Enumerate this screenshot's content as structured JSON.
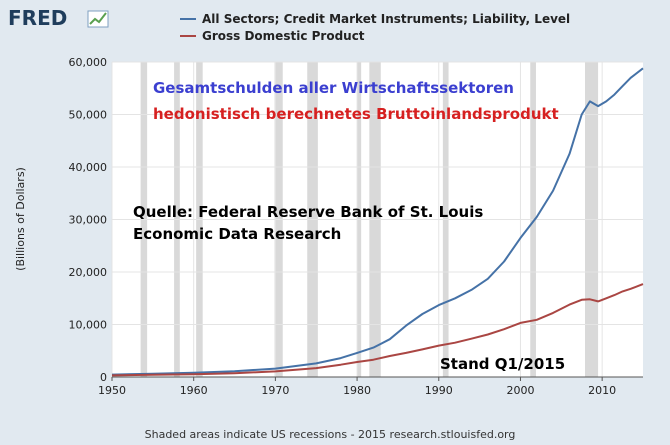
{
  "logo": {
    "text": "FRED"
  },
  "footer": "Shaded areas indicate US recessions - 2015 research.stlouisfed.org",
  "annotations": {
    "blue": "Gesamtschulden aller Wirtschaftssektoren",
    "red": "hedonistisch berechnetes Bruttoinlandsprodukt",
    "source_line1": "Quelle: Federal Reserve  Bank of St. Louis",
    "source_line2": "Economic Data Research",
    "stand": "Stand Q1/2015"
  },
  "colors": {
    "blue": "#4572a7",
    "red": "#aa4643",
    "annot_blue": "#3b3fd0",
    "annot_red": "#d62020",
    "recession": "#d9d9d9"
  },
  "chart_data": {
    "type": "line",
    "ylabel": "(Billions of Dollars)",
    "xlim": [
      1950,
      2015
    ],
    "ylim": [
      0,
      60000
    ],
    "xticks": [
      1950,
      1960,
      1970,
      1980,
      1990,
      2000,
      2010
    ],
    "yticks": [
      0,
      10000,
      20000,
      30000,
      40000,
      50000,
      60000
    ],
    "ytick_labels": [
      "0",
      "10,000",
      "20,000",
      "30,000",
      "40,000",
      "50,000",
      "60,000"
    ],
    "grid": true,
    "legend_position": "top",
    "recessions": [
      [
        1953.5,
        1954.3
      ],
      [
        1957.6,
        1958.3
      ],
      [
        1960.3,
        1961.1
      ],
      [
        1969.9,
        1970.9
      ],
      [
        1973.9,
        1975.2
      ],
      [
        1980.0,
        1980.5
      ],
      [
        1981.5,
        1982.9
      ],
      [
        1990.5,
        1991.2
      ],
      [
        2001.2,
        2001.9
      ],
      [
        2007.9,
        2009.5
      ]
    ],
    "series": [
      {
        "name": "All Sectors; Credit Market Instruments; Liability, Level",
        "color": "#4572a7",
        "points": [
          [
            1950,
            450
          ],
          [
            1955,
            620
          ],
          [
            1960,
            800
          ],
          [
            1965,
            1100
          ],
          [
            1970,
            1600
          ],
          [
            1975,
            2600
          ],
          [
            1978,
            3600
          ],
          [
            1980,
            4600
          ],
          [
            1982,
            5600
          ],
          [
            1984,
            7200
          ],
          [
            1986,
            9800
          ],
          [
            1988,
            12000
          ],
          [
            1990,
            13700
          ],
          [
            1992,
            15000
          ],
          [
            1994,
            16600
          ],
          [
            1996,
            18700
          ],
          [
            1998,
            22000
          ],
          [
            2000,
            26500
          ],
          [
            2002,
            30500
          ],
          [
            2004,
            35500
          ],
          [
            2006,
            42500
          ],
          [
            2007.5,
            50000
          ],
          [
            2008.5,
            52500
          ],
          [
            2009.5,
            51600
          ],
          [
            2010.5,
            52500
          ],
          [
            2011.5,
            53800
          ],
          [
            2012.5,
            55400
          ],
          [
            2013.5,
            57000
          ],
          [
            2015,
            58800
          ]
        ]
      },
      {
        "name": "Gross Domestic Product",
        "color": "#aa4643",
        "points": [
          [
            1950,
            300
          ],
          [
            1955,
            420
          ],
          [
            1960,
            540
          ],
          [
            1965,
            720
          ],
          [
            1970,
            1070
          ],
          [
            1975,
            1690
          ],
          [
            1978,
            2350
          ],
          [
            1980,
            2860
          ],
          [
            1982,
            3300
          ],
          [
            1984,
            4000
          ],
          [
            1986,
            4600
          ],
          [
            1988,
            5250
          ],
          [
            1990,
            5980
          ],
          [
            1992,
            6540
          ],
          [
            1994,
            7300
          ],
          [
            1996,
            8100
          ],
          [
            1998,
            9100
          ],
          [
            2000,
            10300
          ],
          [
            2002,
            10900
          ],
          [
            2004,
            12200
          ],
          [
            2006,
            13800
          ],
          [
            2007.5,
            14700
          ],
          [
            2008.5,
            14800
          ],
          [
            2009.5,
            14400
          ],
          [
            2010.5,
            15000
          ],
          [
            2011.5,
            15600
          ],
          [
            2012.5,
            16300
          ],
          [
            2013.5,
            16800
          ],
          [
            2015,
            17700
          ]
        ]
      }
    ]
  }
}
